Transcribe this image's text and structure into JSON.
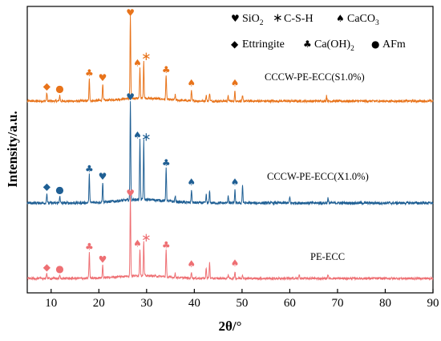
{
  "chart_data": {
    "type": "line",
    "title": "",
    "xlabel": "2θ/°",
    "ylabel": "Intensity/a.u.",
    "xlim": [
      5,
      90
    ],
    "xticks": [
      10,
      20,
      30,
      40,
      50,
      60,
      70,
      80,
      90
    ],
    "yticks_shown": false,
    "legend_position": "top-right",
    "legend": [
      {
        "symbol": "heart",
        "glyph": "♥",
        "text": "SiO",
        "sub": "2"
      },
      {
        "symbol": "asterisk",
        "glyph": "∗",
        "text": "C-S-H",
        "sub": ""
      },
      {
        "symbol": "spade",
        "glyph": "♠",
        "text": "CaCO",
        "sub": "3"
      },
      {
        "symbol": "diamond",
        "glyph": "◆",
        "text": "Ettringite",
        "sub": ""
      },
      {
        "symbol": "club",
        "glyph": "♣",
        "text": "Ca(OH)",
        "sub": "2"
      },
      {
        "symbol": "circle",
        "glyph": "●",
        "text": "AFm",
        "sub": ""
      }
    ],
    "phase_markers": [
      {
        "symbol": "diamond",
        "x": 9.1
      },
      {
        "symbol": "circle",
        "x": 11.8
      },
      {
        "symbol": "club",
        "x": 18.0
      },
      {
        "symbol": "heart",
        "x": 20.8
      },
      {
        "symbol": "heart",
        "x": 26.6
      },
      {
        "symbol": "spade",
        "x": 28.6
      },
      {
        "symbol": "asterisk",
        "x": 29.4
      },
      {
        "symbol": "club",
        "x": 34.1
      },
      {
        "symbol": "spade",
        "x": 39.4
      },
      {
        "symbol": "spade",
        "x": 48.5
      }
    ],
    "series": [
      {
        "name": "CCCW-PE-ECC(S1.0%)",
        "color": "#e8731a",
        "peaks": [
          [
            9.1,
            0.1
          ],
          [
            11.8,
            0.07
          ],
          [
            18.0,
            0.26
          ],
          [
            20.8,
            0.2
          ],
          [
            26.6,
            0.98
          ],
          [
            28.6,
            0.36
          ],
          [
            29.4,
            0.46
          ],
          [
            34.1,
            0.3
          ],
          [
            36.0,
            0.06
          ],
          [
            39.4,
            0.12
          ],
          [
            42.5,
            0.07
          ],
          [
            43.2,
            0.1
          ],
          [
            47.1,
            0.06
          ],
          [
            48.5,
            0.12
          ],
          [
            50.1,
            0.06
          ],
          [
            67.7,
            0.07
          ]
        ]
      },
      {
        "name": "CCCW-PE-ECC(X1.0%)",
        "color": "#1f5f94",
        "peaks": [
          [
            9.1,
            0.1
          ],
          [
            11.8,
            0.07
          ],
          [
            18.0,
            0.28
          ],
          [
            20.8,
            0.2
          ],
          [
            26.6,
            1.0
          ],
          [
            28.6,
            0.6
          ],
          [
            29.4,
            0.6
          ],
          [
            34.1,
            0.34
          ],
          [
            36.0,
            0.06
          ],
          [
            39.4,
            0.13
          ],
          [
            42.5,
            0.08
          ],
          [
            43.2,
            0.12
          ],
          [
            47.1,
            0.08
          ],
          [
            48.5,
            0.13
          ],
          [
            50.1,
            0.18
          ],
          [
            60.0,
            0.06
          ],
          [
            68.0,
            0.05
          ]
        ]
      },
      {
        "name": "PE-ECC",
        "color": "#ee6f73",
        "peaks": [
          [
            9.1,
            0.06
          ],
          [
            11.8,
            0.04
          ],
          [
            18.0,
            0.32
          ],
          [
            20.8,
            0.16
          ],
          [
            26.6,
            1.0
          ],
          [
            28.6,
            0.34
          ],
          [
            29.4,
            0.44
          ],
          [
            34.1,
            0.34
          ],
          [
            36.0,
            0.05
          ],
          [
            39.4,
            0.08
          ],
          [
            42.5,
            0.14
          ],
          [
            43.2,
            0.2
          ],
          [
            47.1,
            0.05
          ],
          [
            48.5,
            0.09
          ],
          [
            50.1,
            0.05
          ],
          [
            62.0,
            0.05
          ],
          [
            68.0,
            0.05
          ]
        ]
      }
    ]
  }
}
